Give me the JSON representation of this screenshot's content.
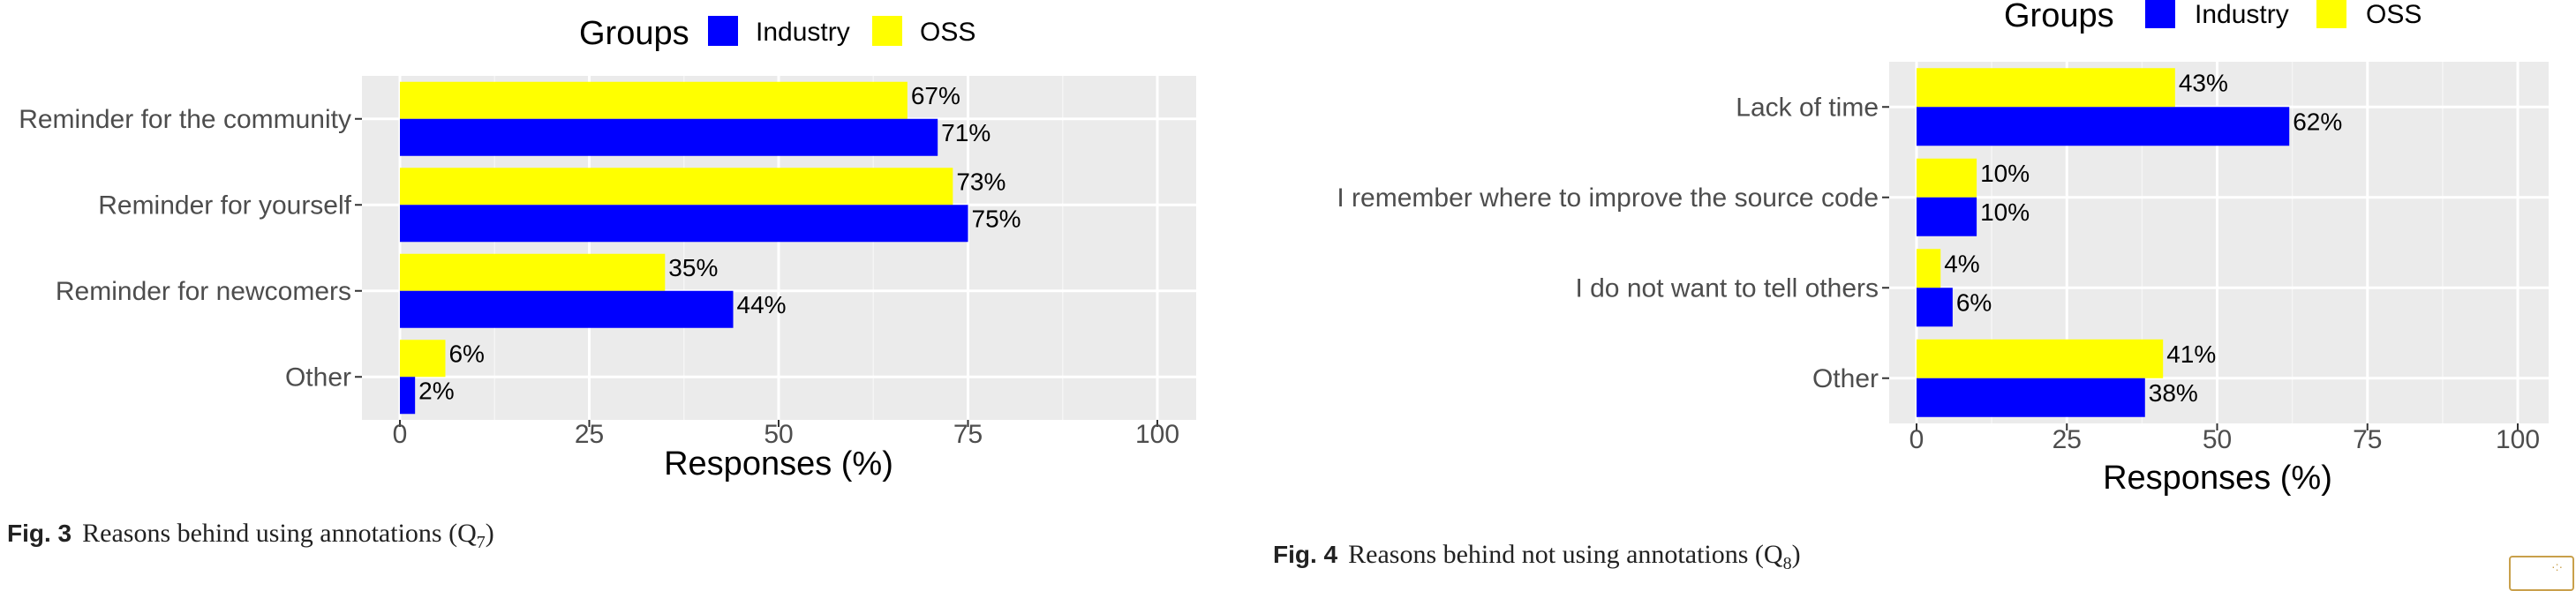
{
  "chart_data": [
    {
      "type": "bar",
      "orientation": "horizontal",
      "legend_title": "Groups",
      "legend_position": "top",
      "categories": [
        "Reminder for the community",
        "Reminder for yourself",
        "Reminder for newcomers",
        "Other"
      ],
      "series": [
        {
          "name": "OSS",
          "color": "#ffff00",
          "values": [
            67,
            73,
            35,
            6
          ],
          "labels": [
            "67%",
            "73%",
            "35%",
            "6%"
          ]
        },
        {
          "name": "Industry",
          "color": "#0000ff",
          "values": [
            71,
            75,
            44,
            2
          ],
          "labels": [
            "71%",
            "75%",
            "44%",
            "2%"
          ]
        }
      ],
      "legend_order": [
        "Industry",
        "OSS"
      ],
      "xlabel": "Responses (%)",
      "xlim": [
        0,
        100
      ],
      "xticks": [
        "0",
        "25",
        "50",
        "75",
        "100"
      ],
      "grid": true,
      "caption_label": "Fig. 3",
      "caption_text": "Reasons behind using annotations (Q",
      "caption_sub": "7",
      "caption_end": ")"
    },
    {
      "type": "bar",
      "orientation": "horizontal",
      "legend_title": "Groups",
      "legend_position": "top",
      "categories": [
        "Lack of time",
        "I remember where to improve the source code",
        "I do not want to tell others",
        "Other"
      ],
      "series": [
        {
          "name": "OSS",
          "color": "#ffff00",
          "values": [
            43,
            10,
            4,
            41
          ],
          "labels": [
            "43%",
            "10%",
            "4%",
            "41%"
          ]
        },
        {
          "name": "Industry",
          "color": "#0000ff",
          "values": [
            62,
            10,
            6,
            38
          ],
          "labels": [
            "62%",
            "10%",
            "6%",
            "38%"
          ]
        }
      ],
      "legend_order": [
        "Industry",
        "OSS"
      ],
      "xlabel": "Responses (%)",
      "xlim": [
        0,
        100
      ],
      "xticks": [
        "0",
        "25",
        "50",
        "75",
        "100"
      ],
      "grid": true,
      "caption_label": "Fig. 4",
      "caption_text": "Reasons behind not using annotations (Q",
      "caption_sub": "8",
      "caption_end": ")"
    }
  ]
}
